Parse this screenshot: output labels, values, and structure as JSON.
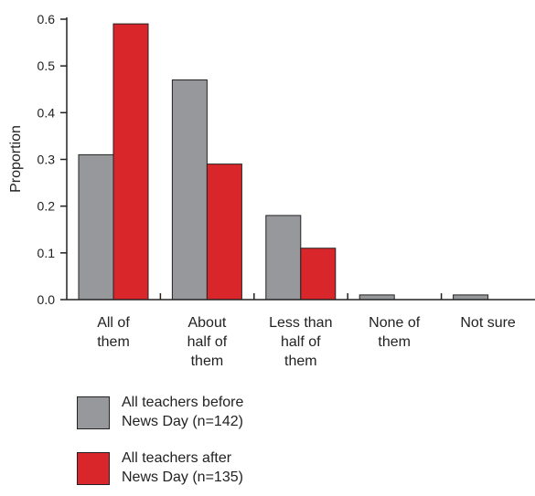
{
  "chart_data": {
    "type": "bar",
    "ylabel": "Proportion",
    "ylim": [
      0,
      0.6
    ],
    "yticks": [
      "0.0",
      "0.1",
      "0.2",
      "0.3",
      "0.4",
      "0.5",
      "0.6"
    ],
    "categories": [
      [
        "All of",
        "them"
      ],
      [
        "About",
        "half of",
        "them"
      ],
      [
        "Less than",
        "half of",
        "them"
      ],
      [
        "None of",
        "them"
      ],
      [
        "Not sure"
      ]
    ],
    "series": [
      {
        "name": "All teachers before News Day (n=142)",
        "color": "#97989b",
        "values": [
          0.31,
          0.47,
          0.18,
          0.01,
          0.01
        ]
      },
      {
        "name": "All teachers after News Day (n=135)",
        "color": "#d9262a",
        "values": [
          0.59,
          0.29,
          0.11,
          0.0,
          0.0
        ]
      }
    ]
  },
  "legend": [
    {
      "line1": "All teachers before",
      "line2": "News Day (n=142)",
      "color": "#97989b"
    },
    {
      "line1": "All teachers after",
      "line2": "News Day (n=135)",
      "color": "#d9262a"
    }
  ]
}
